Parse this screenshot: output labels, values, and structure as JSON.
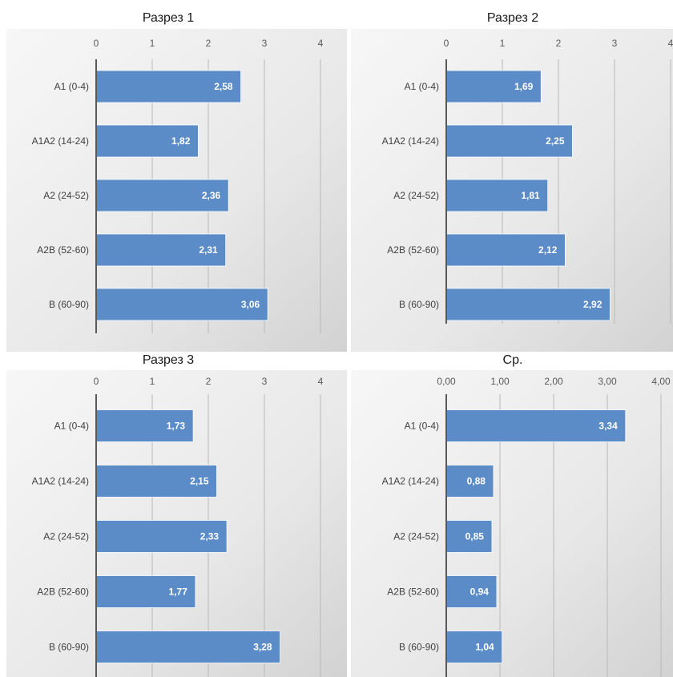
{
  "chart_data": [
    {
      "type": "bar",
      "orientation": "horizontal",
      "title": "Разрез 1",
      "categories": [
        "A1 (0-4)",
        "A1A2 (14-24)",
        "A2 (24-52)",
        "A2B (52-60)",
        "B (60-90)"
      ],
      "values": [
        2.58,
        1.82,
        2.36,
        2.31,
        3.06
      ],
      "value_labels": [
        "2,58",
        "1,82",
        "2,36",
        "2,31",
        "3,06"
      ],
      "xlim": [
        0,
        4
      ],
      "xticks": [
        0,
        1,
        2,
        3,
        4
      ],
      "xtick_labels": [
        "0",
        "1",
        "2",
        "3",
        "4"
      ],
      "grid": true,
      "bar_color": "#5b8cc8",
      "background": "gradient-gray"
    },
    {
      "type": "bar",
      "orientation": "horizontal",
      "title": "Разрез 2",
      "categories": [
        "A1 (0-4)",
        "A1A2 (14-24)",
        "A2 (24-52)",
        "A2B (52-60)",
        "B (60-90)"
      ],
      "values": [
        1.69,
        2.25,
        1.81,
        2.12,
        2.92
      ],
      "value_labels": [
        "1,69",
        "2,25",
        "1,81",
        "2,12",
        "2,92"
      ],
      "xlim": [
        0,
        4
      ],
      "xticks": [
        0,
        1,
        2,
        3,
        4
      ],
      "xtick_labels": [
        "0",
        "1",
        "2",
        "3",
        "4"
      ],
      "grid": true,
      "bar_color": "#5b8cc8",
      "background": "gradient-gray"
    },
    {
      "type": "bar",
      "orientation": "horizontal",
      "title": "Разрез 3",
      "categories": [
        "A1 (0-4)",
        "A1A2 (14-24)",
        "A2 (24-52)",
        "A2B (52-60)",
        "B (60-90)"
      ],
      "values": [
        1.73,
        2.15,
        2.33,
        1.77,
        3.28
      ],
      "value_labels": [
        "1,73",
        "2,15",
        "2,33",
        "1,77",
        "3,28"
      ],
      "xlim": [
        0,
        4
      ],
      "xticks": [
        0,
        1,
        2,
        3,
        4
      ],
      "xtick_labels": [
        "0",
        "1",
        "2",
        "3",
        "4"
      ],
      "grid": true,
      "bar_color": "#5b8cc8",
      "background": "gradient-gray"
    },
    {
      "type": "bar",
      "orientation": "horizontal",
      "title": "Ср.",
      "categories": [
        "A1 (0-4)",
        "A1A2 (14-24)",
        "A2 (24-52)",
        "A2B (52-60)",
        "B (60-90)"
      ],
      "values": [
        3.34,
        0.88,
        0.85,
        0.94,
        1.04
      ],
      "value_labels": [
        "3,34",
        "0,88",
        "0,85",
        "0,94",
        "1,04"
      ],
      "xlim": [
        0,
        4
      ],
      "xticks": [
        0,
        1,
        2,
        3,
        4
      ],
      "xtick_labels": [
        "0,00",
        "1,00",
        "2,00",
        "3,00",
        "4,00"
      ],
      "grid": true,
      "bar_color": "#5b8cc8",
      "background": "gradient-gray"
    }
  ]
}
